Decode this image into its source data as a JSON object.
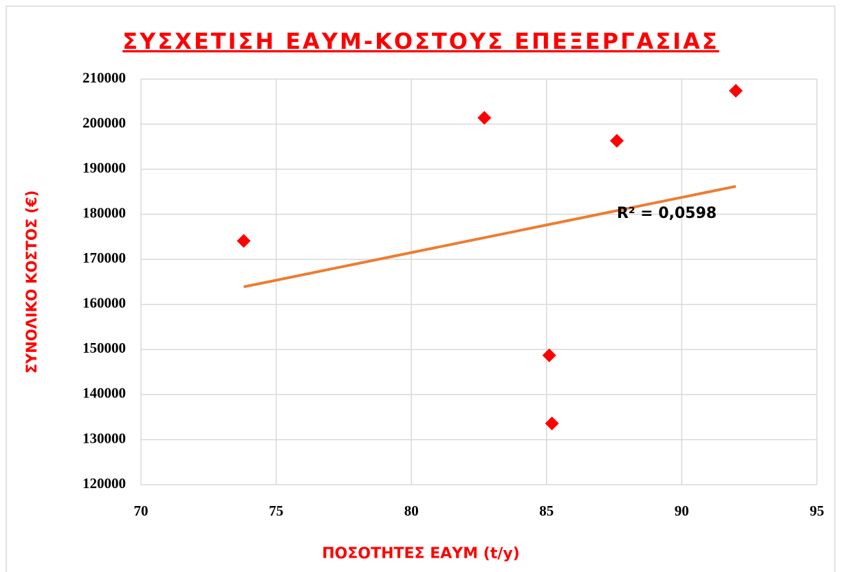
{
  "chart_data": {
    "type": "scatter",
    "title": "ΣΥΣΧΕΤΙΣΗ  ΕΑΥΜ-ΚΟΣΤΟΥΣ  ΕΠΕΞΕΡΓΑΣΙΑΣ",
    "x_label": "ΠΟΣΟΤΗΤΕΣ ΕΑΥΜ (t/y)",
    "y_label": "ΣΥΝΟΛΙΚΟ ΚΟΣΤΟΣ (€)",
    "x": [
      73.8,
      82.7,
      87.6,
      92.0,
      85.1,
      85.2
    ],
    "values": [
      174100,
      201400,
      196300,
      207400,
      148700,
      133600
    ],
    "color": "#ff0000",
    "xlim": [
      70,
      95
    ],
    "xticks": [
      70,
      75,
      80,
      85,
      90,
      95
    ],
    "ylim": [
      120000,
      210000
    ],
    "yticks": [
      120000,
      130000,
      140000,
      150000,
      160000,
      170000,
      180000,
      190000,
      200000,
      210000
    ],
    "grid": true,
    "trendline": {
      "color": "#ed7d31",
      "x": [
        73.8,
        92.0
      ],
      "values": [
        163900,
        186200
      ],
      "label": "R² = 0,0598"
    }
  }
}
